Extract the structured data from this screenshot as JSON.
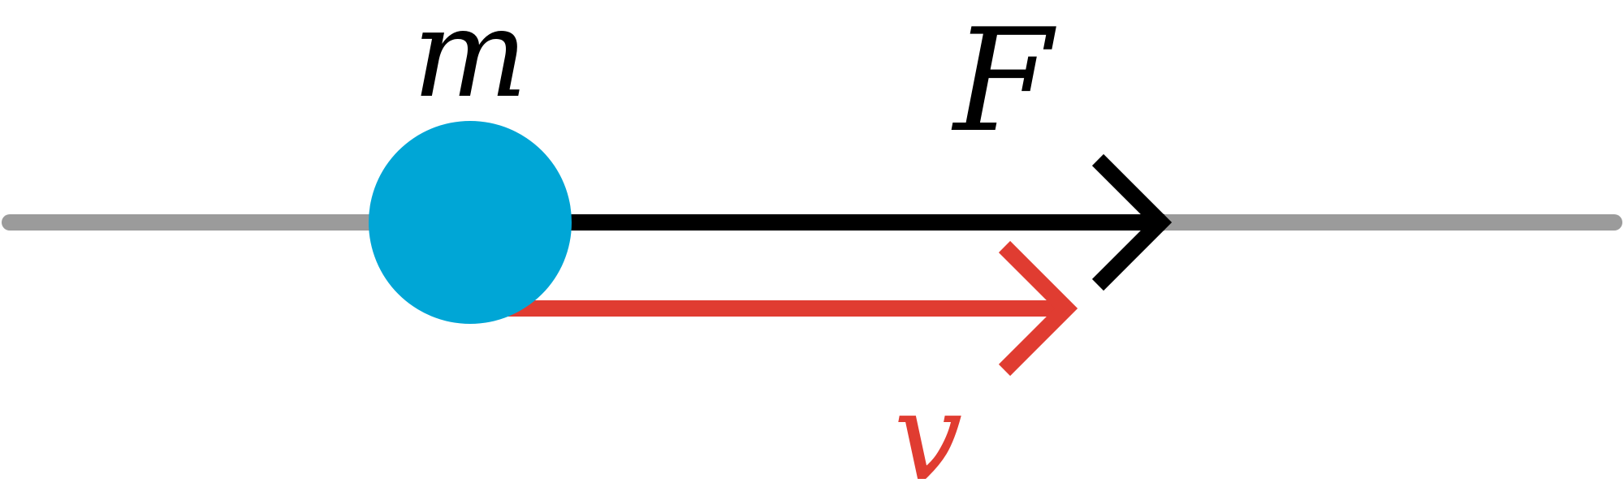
{
  "labels": {
    "mass": "m",
    "force": "F",
    "velocity": "v"
  },
  "colors": {
    "track": "#9b9b9b",
    "mass": "#00a6d6",
    "force": "#000000",
    "velocity": "#e03c31"
  }
}
